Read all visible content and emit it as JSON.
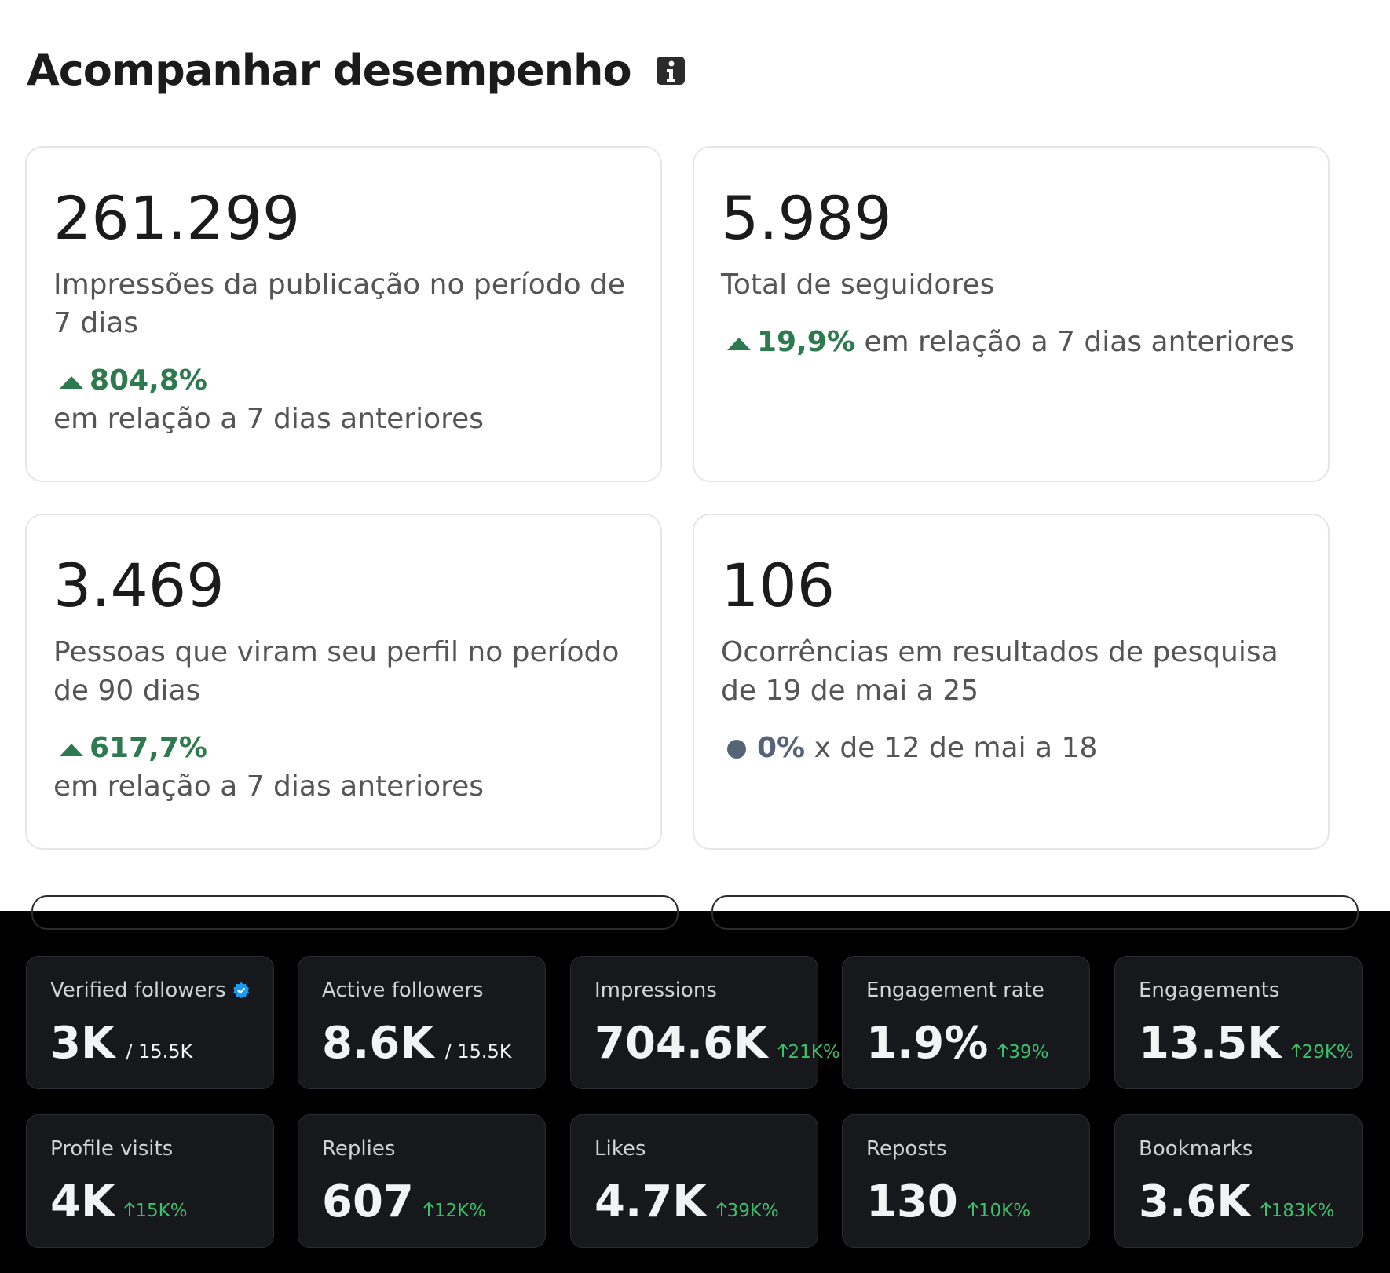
{
  "header": {
    "title": "Acompanhar desempenho"
  },
  "cards": [
    {
      "value": "261.299",
      "label": "Impressões da publicação no período de 7 dias",
      "change": "804,8%",
      "comparison": "em relação a 7 dias anteriores"
    },
    {
      "value": "5.989",
      "label": "Total de seguidores",
      "change": "19,9%",
      "comparison": "em relação a 7 dias anteriores"
    },
    {
      "value": "3.469",
      "label": "Pessoas que viram seu perfil no período de 90 dias",
      "change": "617,7%",
      "comparison": "em relação a 7 dias anteriores"
    },
    {
      "value": "106",
      "label": "Ocorrências em resultados de pesquisa de 19 de mai a 25",
      "change": "0%",
      "comparison": "x de 12 de mai a 18"
    }
  ],
  "stats": [
    {
      "label": "Verified followers",
      "value": "3K",
      "total": "/ 15.5K"
    },
    {
      "label": "Active followers",
      "value": "8.6K",
      "total": "/ 15.5K"
    },
    {
      "label": "Impressions",
      "value": "704.6K",
      "change": "21K%"
    },
    {
      "label": "Engagement rate",
      "value": "1.9%",
      "change": "39%"
    },
    {
      "label": "Engagements",
      "value": "13.5K",
      "change": "29K%"
    },
    {
      "label": "Profile visits",
      "value": "4K",
      "change": "15K%"
    },
    {
      "label": "Replies",
      "value": "607",
      "change": "12K%"
    },
    {
      "label": "Likes",
      "value": "4.7K",
      "change": "39K%"
    },
    {
      "label": "Reposts",
      "value": "130",
      "change": "10K%"
    },
    {
      "label": "Bookmarks",
      "value": "3.6K",
      "change": "183K%"
    }
  ]
}
